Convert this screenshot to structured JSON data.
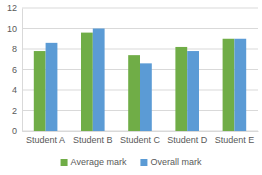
{
  "chart_data": {
    "type": "bar",
    "categories": [
      "Student A",
      "Student B",
      "Student C",
      "Student D",
      "Student E"
    ],
    "series": [
      {
        "name": "Average mark",
        "color": "#70ad47",
        "values": [
          7.8,
          9.6,
          7.4,
          8.2,
          9.0
        ]
      },
      {
        "name": "Overall mark",
        "color": "#5b9bd5",
        "values": [
          8.6,
          10.0,
          6.6,
          7.8,
          9.0
        ]
      }
    ],
    "ylim": [
      0,
      12
    ],
    "yticks": [
      0,
      2,
      4,
      6,
      8,
      10,
      12
    ],
    "grid": true,
    "legend": "bottom"
  }
}
